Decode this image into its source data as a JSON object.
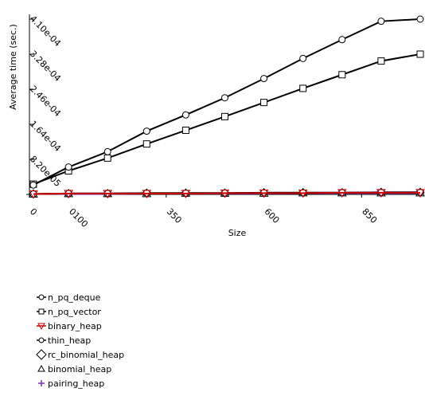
{
  "chart_data": {
    "type": "line",
    "xlabel": "Size",
    "ylabel": "Average time (sec.)",
    "x": [
      10,
      100,
      200,
      300,
      400,
      500,
      600,
      700,
      800,
      900,
      1000
    ],
    "xticks": [
      "0",
      "0100",
      "350",
      "600",
      "850"
    ],
    "xtick_values": [
      0,
      100,
      350,
      600,
      850
    ],
    "yticks": [
      "8.20e-05",
      "1.64e-04",
      "2.46e-04",
      "3.28e-04",
      "4.10e-04"
    ],
    "ytick_values": [
      8.2e-05,
      0.000164,
      0.000246,
      0.000328,
      0.00041
    ],
    "xlim": [
      0,
      1000
    ],
    "ylim": [
      0,
      0.00041
    ],
    "grid": false,
    "legend_position": "bottom-left",
    "series": [
      {
        "name": "n_pq_deque",
        "color": "#000000",
        "marker": "circle",
        "values": [
          2.2e-05,
          6.4e-05,
          0.0001,
          0.000148,
          0.000186,
          0.000226,
          0.000271,
          0.000318,
          0.000362,
          0.000405,
          0.00041
        ]
      },
      {
        "name": "n_pq_vector",
        "color": "#000000",
        "marker": "square",
        "values": [
          2.4e-05,
          5.5e-05,
          8.5e-05,
          0.000118,
          0.00015,
          0.000182,
          0.000215,
          0.000248,
          0.00028,
          0.000312,
          0.000328
        ]
      },
      {
        "name": "binary_heap",
        "color": "#cc0000",
        "marker": "triangle-down",
        "values": [
          1e-06,
          2e-06,
          2e-06,
          2e-06,
          2e-06,
          3e-06,
          3e-06,
          3e-06,
          4e-06,
          4e-06,
          4e-06
        ]
      },
      {
        "name": "thin_heap",
        "color": "#000000",
        "marker": "circle",
        "values": [
          1e-06,
          2e-06,
          2e-06,
          3e-06,
          3e-06,
          3e-06,
          4e-06,
          4e-06,
          4e-06,
          5e-06,
          5e-06
        ]
      },
      {
        "name": "rc_binomial_heap",
        "color": "#000000",
        "marker": "diamond",
        "values": [
          1e-06,
          2e-06,
          2e-06,
          3e-06,
          3e-06,
          3e-06,
          4e-06,
          4e-06,
          4e-06,
          5e-06,
          5e-06
        ]
      },
      {
        "name": "binomial_heap",
        "color": "#000000",
        "marker": "triangle-up",
        "values": [
          1e-06,
          2e-06,
          2e-06,
          2e-06,
          3e-06,
          3e-06,
          3e-06,
          4e-06,
          4e-06,
          4e-06,
          4e-06
        ]
      },
      {
        "name": "pairing_heap",
        "color": "#7a2fb8",
        "marker": "plus",
        "values": [
          1e-06,
          1e-06,
          1e-06,
          2e-06,
          2e-06,
          2e-06,
          2e-06,
          3e-06,
          3e-06,
          3e-06,
          3e-06
        ]
      }
    ]
  }
}
